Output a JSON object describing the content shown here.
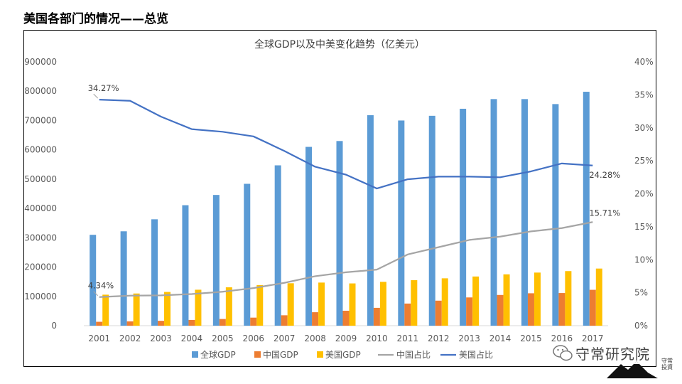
{
  "page": {
    "title": "美国各部门的情况——总览"
  },
  "watermark": {
    "text": "守常研究院",
    "seal_text": "守常投資"
  },
  "chart_data": {
    "type": "bar+line",
    "title": "全球GDP以及中美变化趋势（亿美元）",
    "categories": [
      "2001",
      "2002",
      "2003",
      "2004",
      "2005",
      "2006",
      "2007",
      "2008",
      "2009",
      "2010",
      "2011",
      "2012",
      "2013",
      "2014",
      "2015",
      "2016",
      "2017"
    ],
    "y_left": {
      "min": 0,
      "max": 900000,
      "step": 100000,
      "tick_labels": [
        "0",
        "100000",
        "200000",
        "300000",
        "400000",
        "500000",
        "600000",
        "700000",
        "800000",
        "900000"
      ]
    },
    "y_right": {
      "min": 0,
      "max": 40,
      "step": 5,
      "tick_labels": [
        "0%",
        "5%",
        "10%",
        "15%",
        "20%",
        "25%",
        "30%",
        "35%",
        "40%"
      ]
    },
    "bar_series": [
      {
        "name": "全球GDP",
        "color": "#5b9bd5",
        "values": [
          310000,
          322000,
          363000,
          411000,
          446000,
          484000,
          547000,
          610000,
          630000,
          718000,
          700000,
          716000,
          740000,
          773000,
          773000,
          756000,
          798000
        ]
      },
      {
        "name": "中国GDP",
        "color": "#ed7d31",
        "values": [
          13300,
          14700,
          16600,
          19600,
          22900,
          27500,
          35500,
          45900,
          51000,
          60900,
          75500,
          85400,
          96400,
          104800,
          110600,
          111400,
          122400
        ]
      },
      {
        "name": "美国GDP",
        "color": "#ffc000",
        "values": [
          105800,
          109800,
          115100,
          122700,
          130900,
          138600,
          144800,
          147100,
          144200,
          149600,
          155200,
          161600,
          167800,
          175200,
          181200,
          186200,
          194900
        ]
      }
    ],
    "line_series": [
      {
        "name": "中国占比",
        "color": "#a5a5a5",
        "values": [
          4.34,
          4.56,
          4.6,
          4.8,
          5.15,
          5.7,
          6.5,
          7.5,
          8.1,
          8.5,
          10.8,
          11.9,
          13.0,
          13.5,
          14.3,
          14.8,
          15.71
        ]
      },
      {
        "name": "美国占比",
        "color": "#4472c4",
        "values": [
          34.27,
          34.1,
          31.7,
          29.8,
          29.4,
          28.7,
          26.5,
          24.1,
          22.9,
          20.8,
          22.2,
          22.6,
          22.6,
          22.5,
          23.4,
          24.6,
          24.28
        ]
      }
    ],
    "data_labels": [
      {
        "series": "美国占比",
        "index": 0,
        "text": "34.27%",
        "anchor": "start"
      },
      {
        "series": "中国占比",
        "index": 0,
        "text": "4.34%",
        "anchor": "start"
      },
      {
        "series": "美国占比",
        "index": 16,
        "text": "24.28%",
        "anchor": "middle"
      },
      {
        "series": "中国占比",
        "index": 16,
        "text": "15.71%",
        "anchor": "middle"
      }
    ],
    "legend": [
      "全球GDP",
      "中国GDP",
      "美国GDP",
      "中国占比",
      "美国占比"
    ],
    "legend_position": "bottom",
    "grid": false
  }
}
